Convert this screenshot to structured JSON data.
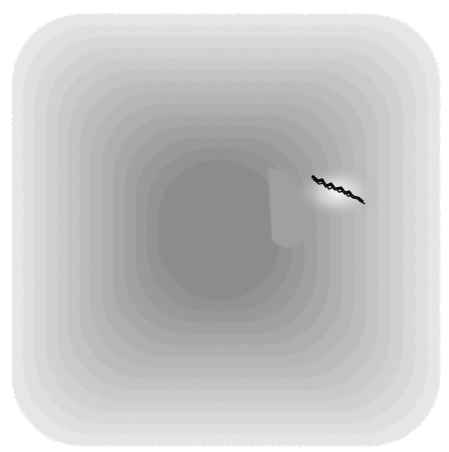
{
  "image": {
    "description_free": true,
    "background_color": "#ffffff",
    "field": {
      "outer_color": "#e6e6e6",
      "inner_color": "#8c8c8c",
      "band_count": 14
    },
    "crack": {
      "color": "#0a0a0a",
      "glow_color": "#f7f7f7"
    }
  }
}
